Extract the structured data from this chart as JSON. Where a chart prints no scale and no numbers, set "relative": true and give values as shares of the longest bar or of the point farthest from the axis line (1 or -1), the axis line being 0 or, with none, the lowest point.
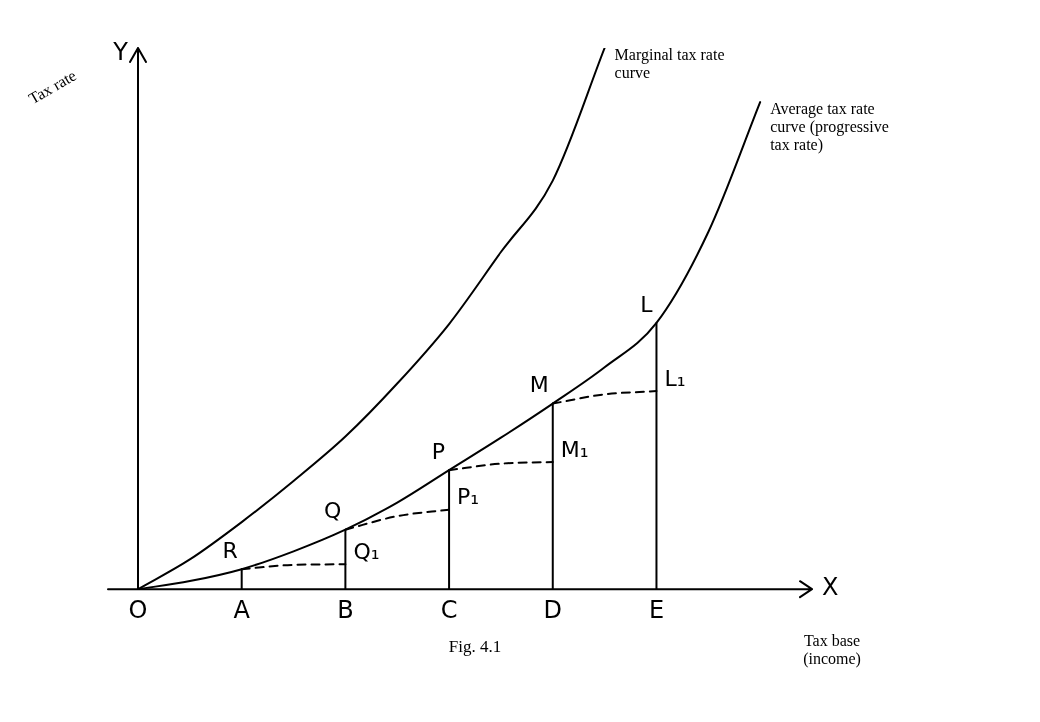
{
  "chart_data": {
    "type": "line",
    "relative": true,
    "xlabel": "Tax base (income)",
    "ylabel": "Tax rate",
    "categories": [
      "O",
      null,
      "A",
      null,
      "B",
      null,
      "C",
      null,
      "D",
      null,
      "E",
      null,
      null,
      null
    ],
    "marker": "none",
    "series": [
      {
        "name": "Marginal tax rate curve",
        "color": "#000000",
        "values": [
          0,
          0.055,
          0.124,
          0.2,
          0.282,
          0.38,
          0.49,
          0.623,
          0.755,
          1,
          null,
          null,
          null,
          null
        ]
      },
      {
        "name": "Average tax rate curve (progressive tax rate)",
        "color": "#000000",
        "values": [
          0,
          0.015,
          0.037,
          0.07,
          0.11,
          0.16,
          0.22,
          0.28,
          0.343,
          0.41,
          0.492,
          0.66,
          0.9,
          null
        ]
      },
      {
        "color": "#000000",
        "line_style": "dashed",
        "values": [
          null,
          null,
          0.037,
          0.045,
          0.046,
          null,
          null,
          null,
          null,
          null,
          null,
          null,
          null,
          null
        ]
      },
      {
        "color": "#000000",
        "line_style": "dashed",
        "values": [
          null,
          null,
          null,
          null,
          0.11,
          0.135,
          0.147,
          null,
          null,
          null,
          null,
          null,
          null,
          null
        ]
      },
      {
        "color": "#000000",
        "line_style": "dashed",
        "values": [
          null,
          null,
          null,
          null,
          null,
          null,
          0.22,
          0.232,
          0.235,
          null,
          null,
          null,
          null,
          null
        ]
      },
      {
        "color": "#000000",
        "line_style": "dashed",
        "values": [
          null,
          null,
          null,
          null,
          null,
          null,
          null,
          null,
          0.343,
          0.36,
          0.366,
          null,
          null,
          null
        ]
      },
      {
        "color": "#000000",
        "x": [
          "A",
          "A"
        ],
        "values": [
          0,
          0.037
        ]
      },
      {
        "color": "#000000",
        "x": [
          "B",
          "B"
        ],
        "values": [
          0,
          0.11
        ]
      },
      {
        "color": "#000000",
        "x": [
          "C",
          "C"
        ],
        "values": [
          0,
          0.22
        ]
      },
      {
        "color": "#000000",
        "x": [
          "D",
          "D"
        ],
        "values": [
          0,
          0.343
        ]
      },
      {
        "color": "#000000",
        "x": [
          "E",
          "E"
        ],
        "values": [
          0,
          0.492
        ]
      }
    ],
    "annotations": [
      {
        "text": "R",
        "x": "A",
        "y": 0.037
      },
      {
        "text": "Q",
        "x": "B",
        "y": 0.11
      },
      {
        "text": "P",
        "x": "C",
        "y": 0.22
      },
      {
        "text": "M",
        "x": "D",
        "y": 0.343
      },
      {
        "text": "L",
        "x": "E",
        "y": 0.492
      },
      {
        "text": "Q₁",
        "x": "B",
        "y": 0.046
      },
      {
        "text": "P₁",
        "x": "C",
        "y": 0.147
      },
      {
        "text": "M₁",
        "x": "D",
        "y": 0.235
      },
      {
        "text": "L₁",
        "x": "E",
        "y": 0.366
      },
      "Y",
      "X",
      "Fig. 4.1"
    ]
  }
}
